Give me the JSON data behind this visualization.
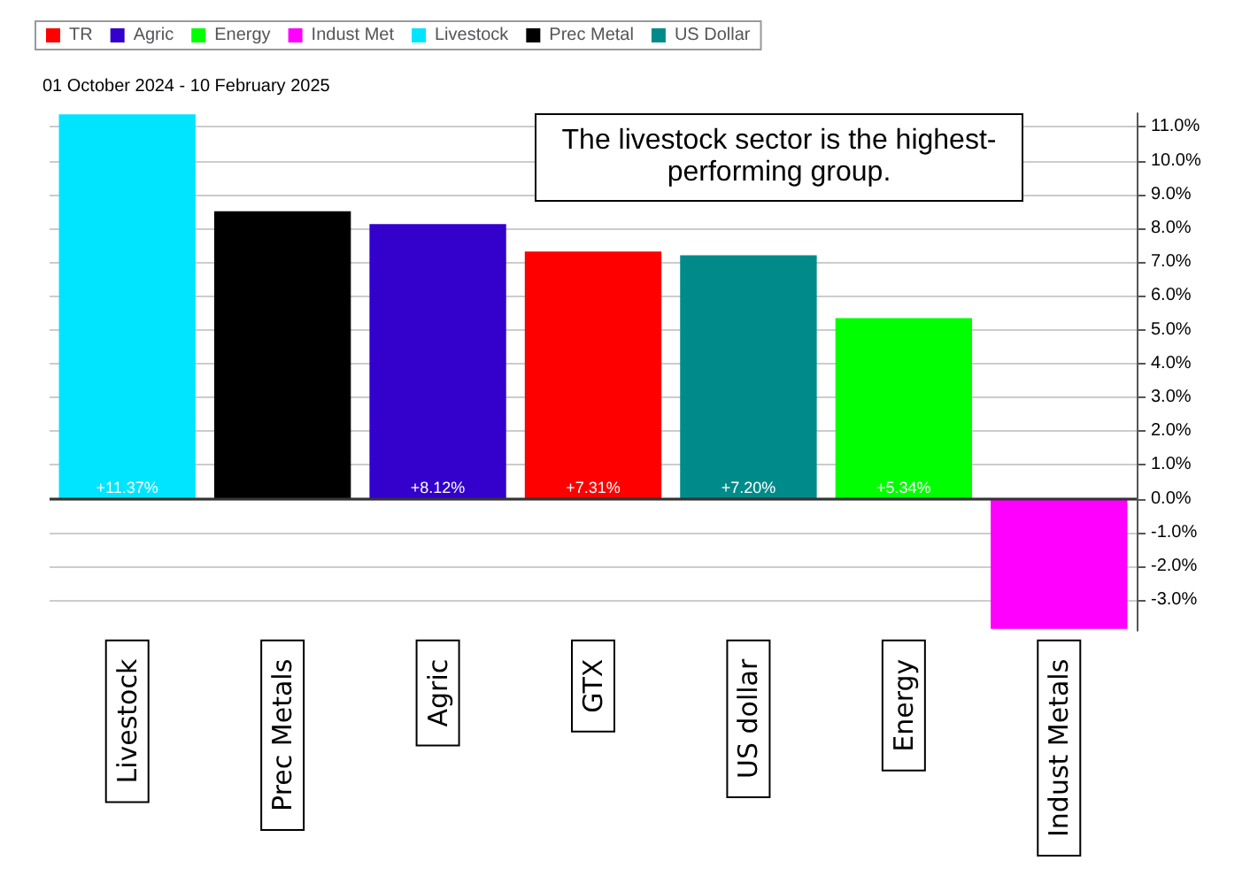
{
  "chart_data": {
    "type": "bar",
    "subtitle": "01 October 2024 - 10 February 2025",
    "annotations": [
      "The livestock sector is the highest-performing group."
    ],
    "categories": [
      "Livestock",
      "Prec Metals",
      "Agric",
      "GTX",
      "US dollar",
      "Energy",
      "Indust Metals"
    ],
    "stacked": true,
    "series": [
      {
        "name": "TR",
        "color": "#ff0000",
        "values": [
          null,
          null,
          null,
          7.31,
          null,
          null,
          null
        ],
        "value_labels": [
          null,
          null,
          null,
          "+7.31%",
          null,
          null,
          null
        ]
      },
      {
        "name": "Agric",
        "color": "#3300cc",
        "values": [
          null,
          null,
          8.12,
          null,
          null,
          null,
          null
        ],
        "value_labels": [
          null,
          null,
          "+8.12%",
          null,
          null,
          null,
          null
        ]
      },
      {
        "name": "Energy",
        "color": "#00ff00",
        "values": [
          null,
          null,
          null,
          null,
          null,
          5.34,
          null
        ],
        "value_labels": [
          null,
          null,
          null,
          null,
          null,
          "+5.34%",
          null
        ]
      },
      {
        "name": "Indust Met",
        "color": "#ff00ff",
        "values": [
          null,
          null,
          null,
          null,
          null,
          null,
          -3.85
        ],
        "value_labels": [
          null,
          null,
          null,
          null,
          null,
          null,
          null
        ]
      },
      {
        "name": "Livestock",
        "color": "#00e5ff",
        "values": [
          11.37,
          null,
          null,
          null,
          null,
          null,
          null
        ],
        "value_labels": [
          "+11.37%",
          null,
          null,
          null,
          null,
          null,
          null
        ]
      },
      {
        "name": "Prec Metal",
        "color": "#000000",
        "values": [
          null,
          8.5,
          null,
          null,
          null,
          null,
          null
        ],
        "value_labels": [
          null,
          null,
          null,
          null,
          null,
          null,
          null
        ]
      },
      {
        "name": "US Dollar",
        "color": "#008b8b",
        "values": [
          null,
          null,
          null,
          null,
          7.2,
          null,
          null
        ],
        "value_labels": [
          null,
          null,
          null,
          null,
          "+7.20%",
          null,
          null
        ]
      }
    ],
    "ylim": [
      -3.9,
      11.4
    ],
    "yticks": [
      {
        "value": -3,
        "label": "-3.0%"
      },
      {
        "value": -2,
        "label": "-2.0%"
      },
      {
        "value": -1,
        "label": "-1.0%"
      },
      {
        "value": 0,
        "label": "0.0%"
      },
      {
        "value": 1,
        "label": "1.0%"
      },
      {
        "value": 2,
        "label": "2.0%"
      },
      {
        "value": 3,
        "label": "3.0%"
      },
      {
        "value": 4,
        "label": "4.0%"
      },
      {
        "value": 5,
        "label": "5.0%"
      },
      {
        "value": 6,
        "label": "6.0%"
      },
      {
        "value": 7,
        "label": "7.0%"
      },
      {
        "value": 8,
        "label": "8.0%"
      },
      {
        "value": 9,
        "label": "9.0%"
      },
      {
        "value": 10,
        "label": "10.0%"
      },
      {
        "value": 11,
        "label": "11.0%"
      }
    ],
    "grid": "y",
    "legend": "top left"
  }
}
